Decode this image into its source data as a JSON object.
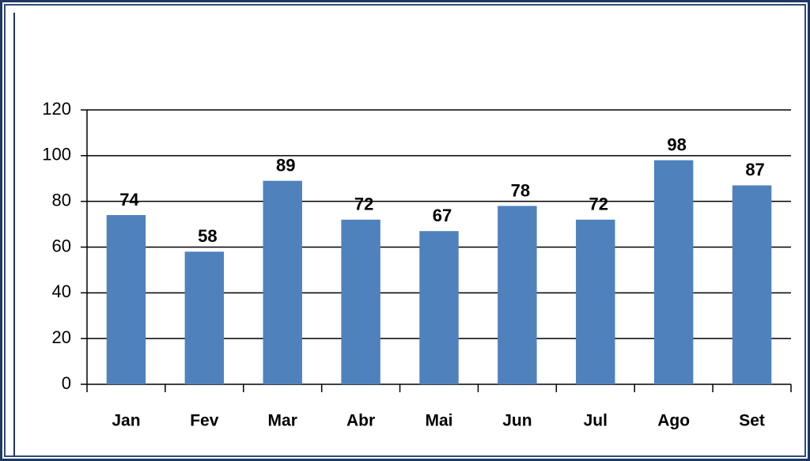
{
  "chart_data": {
    "type": "bar",
    "categories": [
      "Jan",
      "Fev",
      "Mar",
      "Abr",
      "Mai",
      "Jun",
      "Jul",
      "Ago",
      "Set"
    ],
    "values": [
      74,
      58,
      89,
      72,
      67,
      78,
      72,
      98,
      87
    ],
    "color": "#4f81bd",
    "ylim": [
      0,
      120
    ],
    "yticks": [
      0,
      20,
      40,
      60,
      80,
      100,
      120
    ],
    "grid": true
  }
}
